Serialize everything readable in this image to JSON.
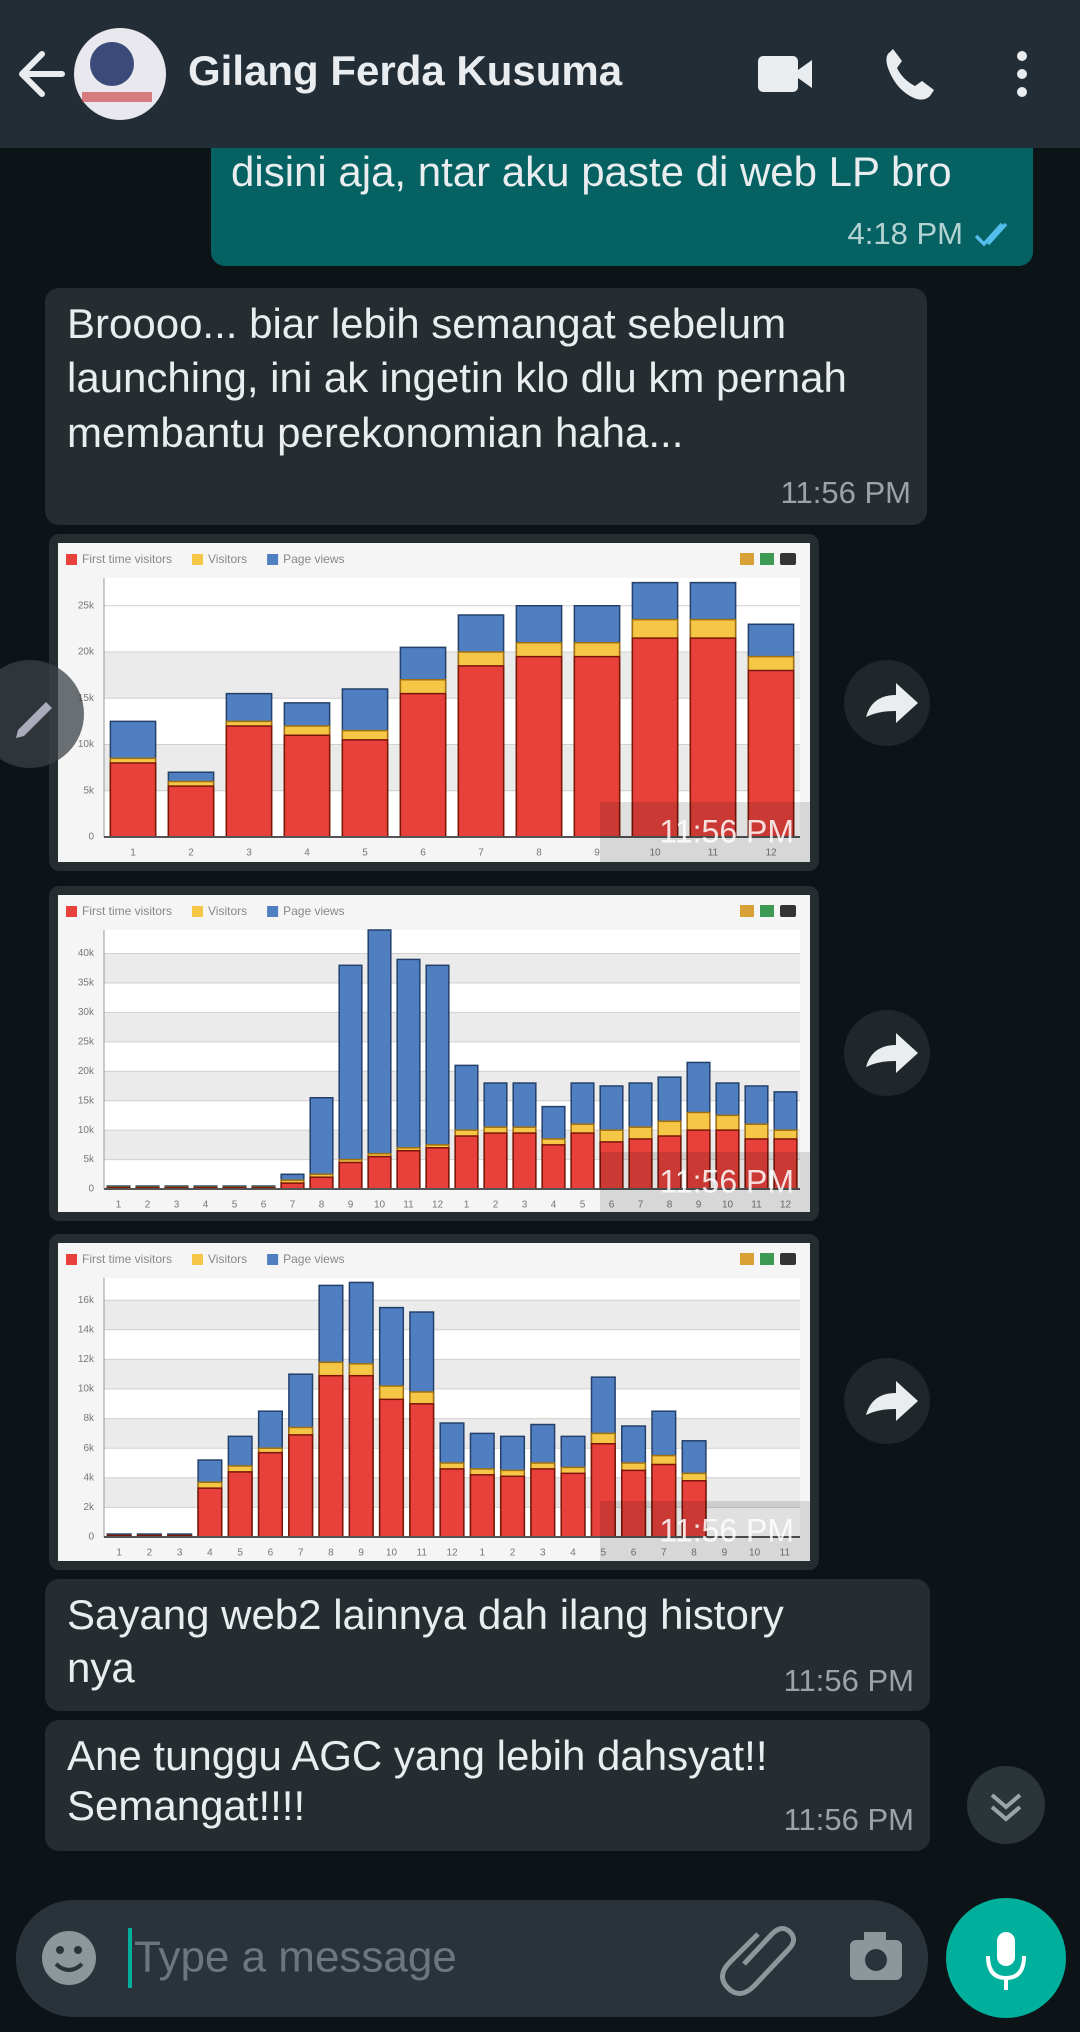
{
  "header": {
    "contact_name": "Gilang Ferda Kusuma"
  },
  "messages": [
    {
      "type": "out",
      "lines": [
        "disini aja, ntar aku paste di web LP bro"
      ],
      "time": "4:18 PM"
    },
    {
      "type": "in",
      "lines": [
        "Broooo... biar lebih semangat sebelum",
        "launching, ini ak ingetin klo dlu km pernah",
        "membantu perekonomian haha..."
      ],
      "time": "11:56 PM"
    },
    {
      "type": "image",
      "time": "11:56 PM",
      "chart_data": {
        "type": "bar",
        "categories": [
          "1",
          "2",
          "3",
          "4",
          "5",
          "6",
          "7",
          "8",
          "9",
          "10",
          "11",
          "12"
        ],
        "series": [
          {
            "name": "First time visitors",
            "color": "#e8413c",
            "values": [
              8000,
              5500,
              12000,
              11000,
              10500,
              15500,
              18500,
              19500,
              19500,
              21500,
              21500,
              18000
            ]
          },
          {
            "name": "Visitors",
            "color": "#f6c646",
            "values": [
              8500,
              6000,
              12500,
              12000,
              11500,
              17000,
              20000,
              21000,
              21000,
              23500,
              23500,
              19500
            ]
          },
          {
            "name": "Page views",
            "color": "#4f7fc0",
            "values": [
              12500,
              7000,
              15500,
              14500,
              16000,
              20500,
              24000,
              25000,
              25000,
              27500,
              27500,
              23000
            ]
          }
        ],
        "ylim": [
          0,
          28000
        ],
        "yticks": [
          0,
          {
            "value": 5000,
            "label": "5k"
          },
          {
            "value": 10000,
            "label": "10k"
          },
          {
            "value": 15000,
            "label": "15k"
          },
          {
            "value": 20000,
            "label": "20k"
          },
          {
            "value": 25000,
            "label": "25k"
          }
        ],
        "grid": true
      }
    },
    {
      "type": "image",
      "time": "11:56 PM",
      "chart_data": {
        "type": "bar",
        "categories": [
          "1",
          "2",
          "3",
          "4",
          "5",
          "6",
          "7",
          "8",
          "9",
          "10",
          "11",
          "12",
          "1",
          "2",
          "3",
          "4",
          "5",
          "6",
          "7",
          "8",
          "9",
          "10",
          "11",
          "12"
        ],
        "series": [
          {
            "name": "First time visitors",
            "color": "#e8413c",
            "values": [
              200,
              200,
              200,
              200,
              200,
              200,
              1000,
              2000,
              4500,
              5500,
              6500,
              7000,
              9000,
              9500,
              9500,
              7500,
              9500,
              8000,
              8500,
              9000,
              10000,
              10000,
              8500,
              8500
            ]
          },
          {
            "name": "Visitors",
            "color": "#f6c646",
            "values": [
              300,
              300,
              300,
              300,
              300,
              300,
              1500,
              2500,
              5000,
              6000,
              7000,
              7500,
              10000,
              10500,
              10500,
              8500,
              11000,
              10000,
              10500,
              11500,
              13000,
              12500,
              11000,
              10000
            ]
          },
          {
            "name": "Page views",
            "color": "#4f7fc0",
            "values": [
              500,
              500,
              500,
              500,
              500,
              500,
              2500,
              15500,
              38000,
              44000,
              39000,
              38000,
              21000,
              18000,
              18000,
              14000,
              18000,
              17500,
              18000,
              19000,
              21500,
              18000,
              17500,
              16500
            ]
          }
        ],
        "ylim": [
          0,
          44000
        ],
        "yticks": [
          0,
          {
            "value": 5000,
            "label": "5k"
          },
          {
            "value": 10000,
            "label": "10k"
          },
          {
            "value": 15000,
            "label": "15k"
          },
          {
            "value": 20000,
            "label": "20k"
          },
          {
            "value": 25000,
            "label": "25k"
          },
          {
            "value": 30000,
            "label": "30k"
          },
          {
            "value": 35000,
            "label": "35k"
          },
          {
            "value": 40000,
            "label": "40k"
          }
        ],
        "grid": true
      }
    },
    {
      "type": "image",
      "time": "11:56 PM",
      "chart_data": {
        "type": "bar",
        "categories": [
          "1",
          "2",
          "3",
          "4",
          "5",
          "6",
          "7",
          "8",
          "9",
          "10",
          "11",
          "12",
          "1",
          "2",
          "3",
          "4",
          "5",
          "6",
          "7",
          "8",
          "9",
          "10",
          "11"
        ],
        "series": [
          {
            "name": "First time visitors",
            "color": "#e8413c",
            "values": [
              100,
              100,
              100,
              3300,
              4400,
              5700,
              6900,
              10900,
              10900,
              9300,
              9000,
              4600,
              4200,
              4100,
              4600,
              4300,
              6300,
              4500,
              4900,
              3800,
              0,
              0,
              0
            ]
          },
          {
            "name": "Visitors",
            "color": "#f6c646",
            "values": [
              100,
              100,
              100,
              3700,
              4800,
              6000,
              7400,
              11800,
              11700,
              10200,
              9800,
              5000,
              4600,
              4500,
              5000,
              4700,
              7000,
              5000,
              5500,
              4300,
              0,
              0,
              0
            ]
          },
          {
            "name": "Page views",
            "color": "#4f7fc0",
            "values": [
              200,
              200,
              200,
              5200,
              6800,
              8500,
              11000,
              17000,
              17200,
              15500,
              15200,
              7700,
              7000,
              6800,
              7600,
              6800,
              10800,
              7500,
              8500,
              6500,
              0,
              0,
              0
            ]
          }
        ],
        "ylim": [
          0,
          17500
        ],
        "yticks": [
          0,
          {
            "value": 2000,
            "label": "2k"
          },
          {
            "value": 4000,
            "label": "4k"
          },
          {
            "value": 6000,
            "label": "6k"
          },
          {
            "value": 8000,
            "label": "8k"
          },
          {
            "value": 10000,
            "label": "10k"
          },
          {
            "value": 12000,
            "label": "12k"
          },
          {
            "value": 14000,
            "label": "14k"
          },
          {
            "value": 16000,
            "label": "16k"
          }
        ],
        "grid": true
      }
    },
    {
      "type": "in",
      "lines": [
        "Sayang web2 lainnya dah ilang history",
        "nya"
      ],
      "time": "11:56 PM"
    },
    {
      "type": "in",
      "lines": [
        "Ane tunggu AGC yang lebih dahsyat!!",
        "Semangat!!!!"
      ],
      "time": "11:56 PM"
    }
  ],
  "input": {
    "placeholder": "Type a message"
  }
}
